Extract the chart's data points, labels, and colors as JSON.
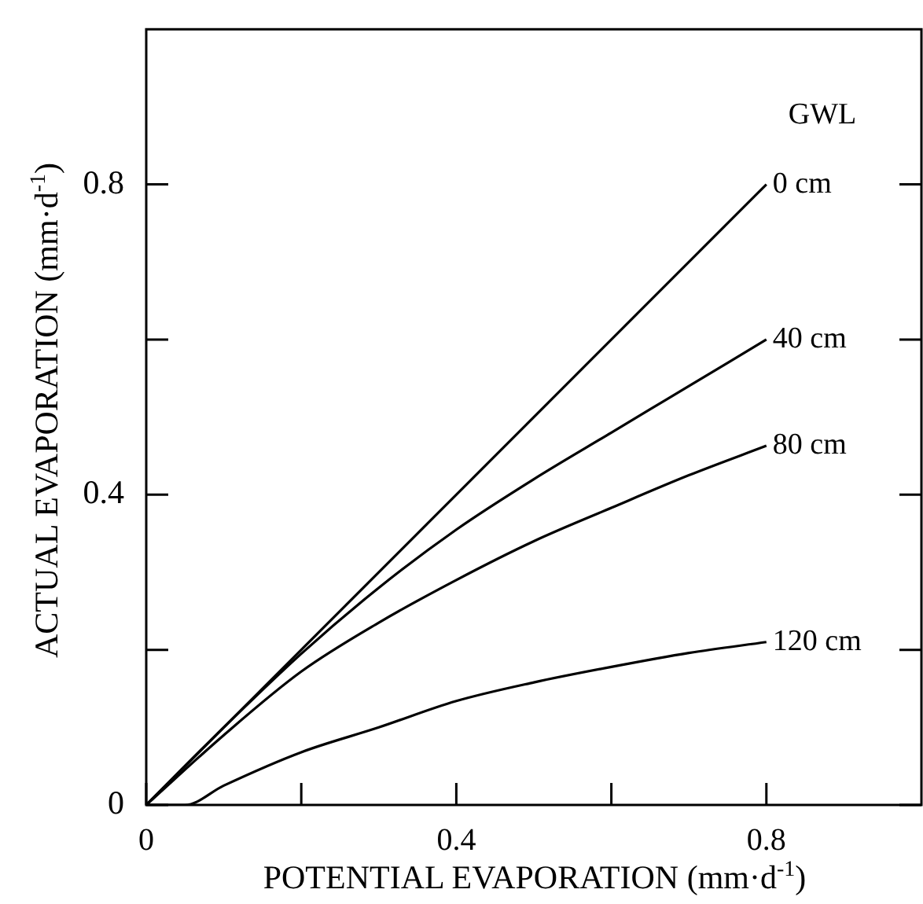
{
  "chart_data": {
    "type": "line",
    "xlabel": "POTENTIAL EVAPORATION  (mm·d$^{-1}$)",
    "ylabel": "ACTUAL EVAPORATION  (mm·d$^{-1}$)",
    "legend_title": "GWL",
    "xlim": [
      0,
      1
    ],
    "ylim": [
      0,
      1
    ],
    "xticks": [
      0,
      {
        "value": 0.2,
        "label": null
      },
      0.4,
      {
        "value": 0.6,
        "label": null
      },
      0.8
    ],
    "yticks": [
      0,
      {
        "value": 0.2,
        "label": null
      },
      0.4,
      {
        "value": 0.6,
        "label": null
      },
      0.8
    ],
    "grid": false,
    "legend": "right",
    "marker": "none",
    "line_style": "solid",
    "series": [
      {
        "name": "0 cm",
        "color": "#000000",
        "x": [
          0,
          0.8
        ],
        "values": [
          0,
          0.8
        ]
      },
      {
        "name": "40 cm",
        "color": "#000000",
        "x": [
          0,
          0.1,
          0.2,
          0.3,
          0.4,
          0.5,
          0.6,
          0.7,
          0.8
        ],
        "values": [
          0,
          0.1,
          0.195,
          0.28,
          0.355,
          0.42,
          0.48,
          0.54,
          0.6
        ]
      },
      {
        "name": "80 cm",
        "color": "#000000",
        "x": [
          0,
          0.1,
          0.2,
          0.3,
          0.4,
          0.5,
          0.6,
          0.7,
          0.8
        ],
        "values": [
          0,
          0.09,
          0.172,
          0.235,
          0.29,
          0.34,
          0.383,
          0.425,
          0.463
        ]
      },
      {
        "name": "120 cm",
        "color": "#000000",
        "x": [
          0,
          0.05,
          0.1,
          0.2,
          0.3,
          0.4,
          0.5,
          0.6,
          0.7,
          0.8
        ],
        "values": [
          0,
          0,
          0.025,
          0.068,
          0.1,
          0.134,
          0.158,
          0.178,
          0.196,
          0.21
        ]
      }
    ]
  }
}
